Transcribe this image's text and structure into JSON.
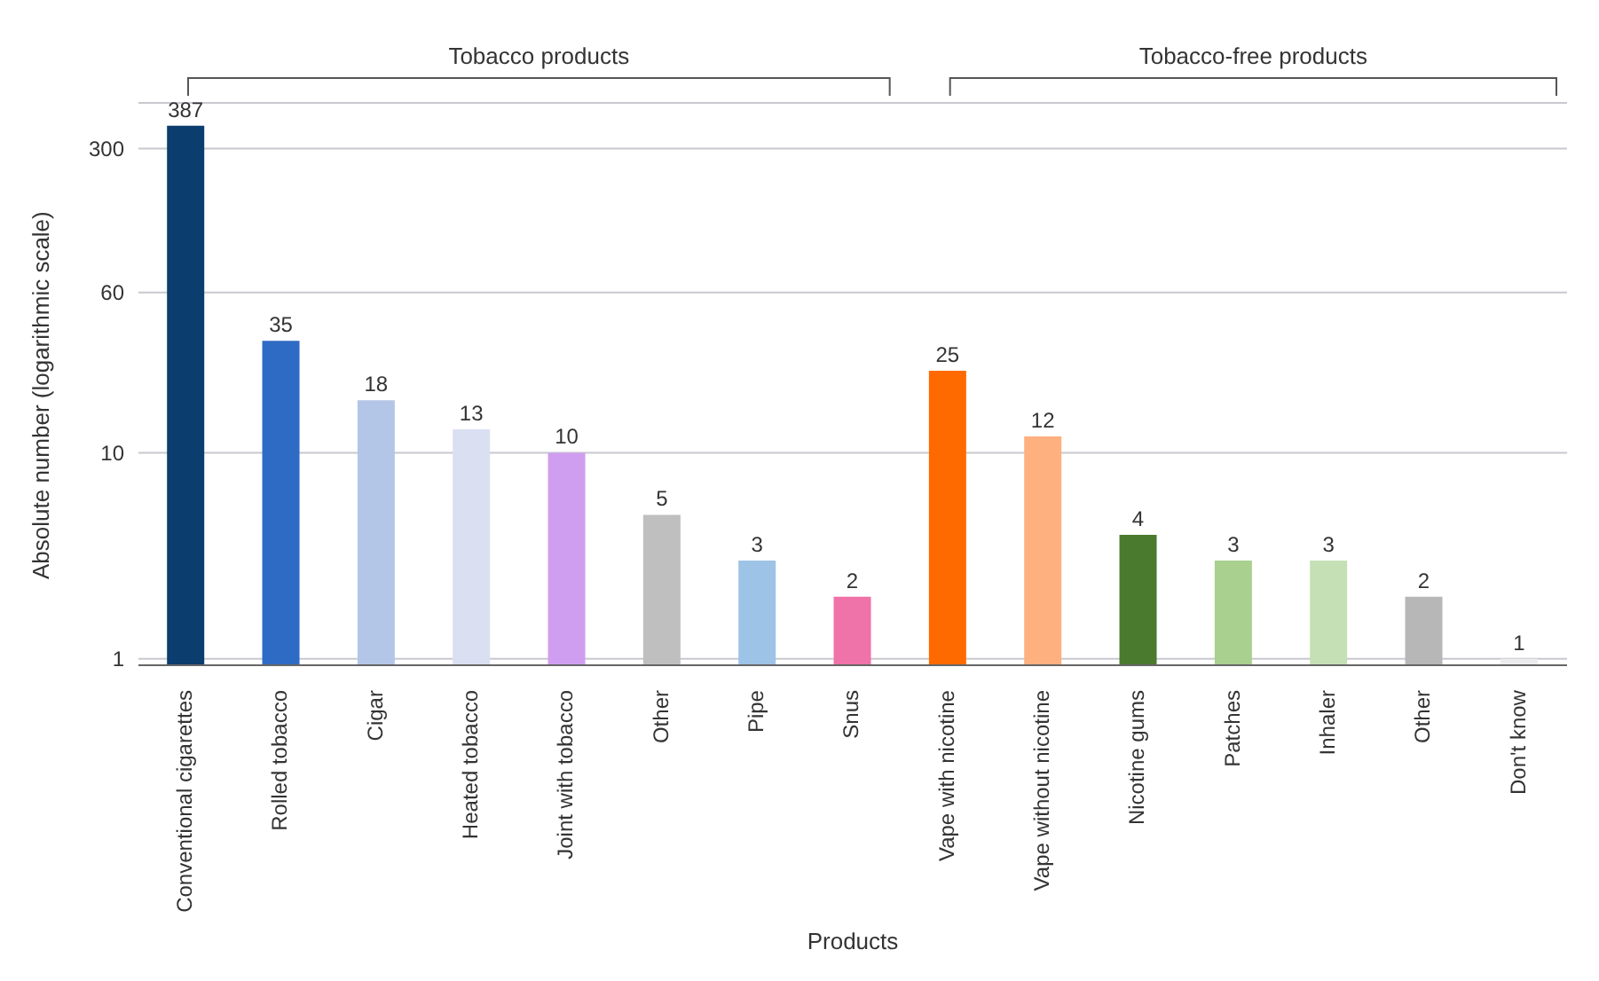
{
  "chart_data": {
    "type": "bar",
    "xlabel": "Products",
    "ylabel": "Absolute number (logarithmic scale)",
    "categories": [
      "Conventional cigarettes",
      "Rolled tobacco",
      "Cigar",
      "Heated tobacco",
      "Joint with tobacco",
      "Other",
      "Pipe",
      "Snus",
      "Vape with nicotine",
      "Vape without nicotine",
      "Nicotine gums",
      "Patches",
      "Inhaler",
      "Other",
      "Don't know"
    ],
    "values": [
      387,
      35,
      18,
      13,
      10,
      5,
      3,
      2,
      25,
      12,
      4,
      3,
      3,
      2,
      1
    ],
    "colors": [
      "#0b3d6e",
      "#2e6bc4",
      "#b4c6e7",
      "#dae0f2",
      "#d09ef0",
      "#bfbfbf",
      "#9dc3e6",
      "#ef72a8",
      "#ff6a00",
      "#ffb07f",
      "#4a7a2e",
      "#a9d08e",
      "#c5e0b4",
      "#b7b7b7",
      "#ececec"
    ],
    "log": true,
    "ylim": [
      0.93,
      500
    ],
    "yticks": [
      1,
      10,
      60,
      300
    ],
    "grid": "y",
    "data_labels": true,
    "annotations": [
      "Tobacco products",
      "Tobacco-free products"
    ]
  }
}
